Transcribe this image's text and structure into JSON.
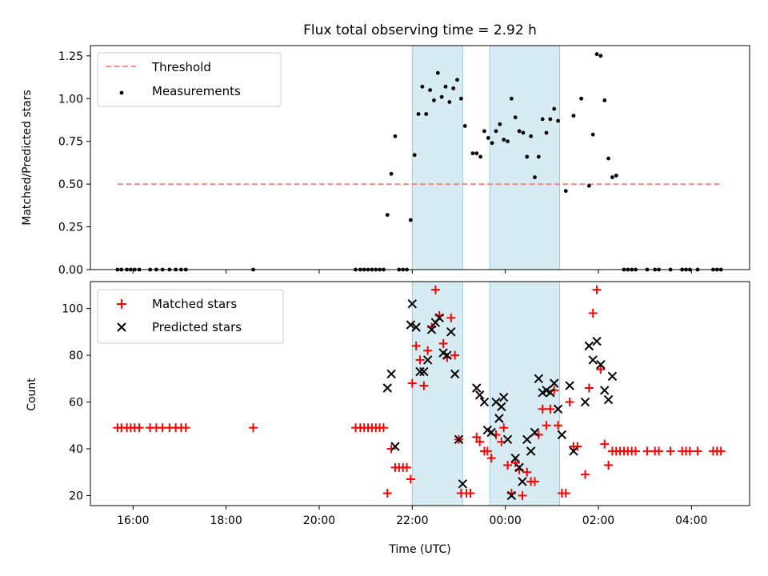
{
  "chart_data": [
    {
      "type": "scatter",
      "title": "Flux total observing time = 2.92 h",
      "xlabel": "",
      "ylabel": "Matched/Predicted stars",
      "ylim": [
        0,
        1.31
      ],
      "yticks": [
        "0.00",
        "0.25",
        "0.50",
        "0.75",
        "1.00",
        "1.25"
      ],
      "xlim": [
        "15:05",
        "05:15"
      ],
      "grid": false,
      "legend_placement": "top-left",
      "shaded_intervals": [
        [
          "22:00",
          "23:05"
        ],
        [
          "23:40",
          "01:10"
        ]
      ],
      "series": [
        {
          "name": "Threshold",
          "style": "dashed-line",
          "color": "#ff7f7f",
          "points": [
            [
              "15:40",
              0.5
            ],
            [
              "04:40",
              0.5
            ]
          ]
        },
        {
          "name": "Measurements",
          "style": "dots",
          "color": "#000000",
          "points": [
            [
              "15:40",
              0.0
            ],
            [
              "15:45",
              0.0
            ],
            [
              "15:52",
              0.0
            ],
            [
              "15:57",
              0.0
            ],
            [
              "16:02",
              0.0
            ],
            [
              "16:08",
              0.0
            ],
            [
              "16:22",
              0.0
            ],
            [
              "16:30",
              0.0
            ],
            [
              "16:38",
              0.0
            ],
            [
              "16:47",
              0.0
            ],
            [
              "16:55",
              0.0
            ],
            [
              "17:02",
              0.0
            ],
            [
              "17:08",
              0.0
            ],
            [
              "18:35",
              0.0
            ],
            [
              "20:47",
              0.0
            ],
            [
              "20:53",
              0.0
            ],
            [
              "20:58",
              0.0
            ],
            [
              "21:03",
              0.0
            ],
            [
              "21:08",
              0.0
            ],
            [
              "21:13",
              0.0
            ],
            [
              "21:18",
              0.0
            ],
            [
              "21:23",
              0.0
            ],
            [
              "21:28",
              0.32
            ],
            [
              "21:33",
              0.56
            ],
            [
              "21:38",
              0.78
            ],
            [
              "21:43",
              0.0
            ],
            [
              "21:48",
              0.0
            ],
            [
              "21:53",
              0.0
            ],
            [
              "21:58",
              0.29
            ],
            [
              "22:03",
              0.67
            ],
            [
              "22:08",
              0.91
            ],
            [
              "22:13",
              1.07
            ],
            [
              "22:18",
              0.91
            ],
            [
              "22:23",
              1.05
            ],
            [
              "22:28",
              0.99
            ],
            [
              "22:33",
              1.15
            ],
            [
              "22:38",
              1.01
            ],
            [
              "22:43",
              1.07
            ],
            [
              "22:48",
              0.98
            ],
            [
              "22:53",
              1.06
            ],
            [
              "22:58",
              1.11
            ],
            [
              "23:03",
              1.0
            ],
            [
              "23:08",
              0.84
            ],
            [
              "23:18",
              0.68
            ],
            [
              "23:23",
              0.68
            ],
            [
              "23:28",
              0.66
            ],
            [
              "23:33",
              0.81
            ],
            [
              "23:38",
              0.77
            ],
            [
              "23:43",
              0.74
            ],
            [
              "23:48",
              0.81
            ],
            [
              "23:53",
              0.85
            ],
            [
              "23:58",
              0.76
            ],
            [
              "00:03",
              0.75
            ],
            [
              "00:08",
              1.0
            ],
            [
              "00:13",
              0.89
            ],
            [
              "00:18",
              0.81
            ],
            [
              "00:23",
              0.8
            ],
            [
              "00:28",
              0.66
            ],
            [
              "00:33",
              0.78
            ],
            [
              "00:38",
              0.54
            ],
            [
              "00:43",
              0.66
            ],
            [
              "00:48",
              0.88
            ],
            [
              "00:53",
              0.8
            ],
            [
              "00:58",
              0.88
            ],
            [
              "01:03",
              0.94
            ],
            [
              "01:08",
              0.87
            ],
            [
              "01:18",
              0.46
            ],
            [
              "01:28",
              0.9
            ],
            [
              "01:38",
              1.0
            ],
            [
              "01:48",
              0.49
            ],
            [
              "01:53",
              0.79
            ],
            [
              "01:58",
              1.26
            ],
            [
              "02:03",
              1.25
            ],
            [
              "02:08",
              0.99
            ],
            [
              "02:13",
              0.65
            ],
            [
              "02:18",
              0.54
            ],
            [
              "02:23",
              0.55
            ],
            [
              "02:33",
              0.0
            ],
            [
              "02:38",
              0.0
            ],
            [
              "02:43",
              0.0
            ],
            [
              "02:48",
              0.0
            ],
            [
              "03:03",
              0.0
            ],
            [
              "03:13",
              0.0
            ],
            [
              "03:18",
              0.0
            ],
            [
              "03:33",
              0.0
            ],
            [
              "03:48",
              0.0
            ],
            [
              "03:53",
              0.0
            ],
            [
              "03:58",
              0.0
            ],
            [
              "04:08",
              0.0
            ],
            [
              "04:28",
              0.0
            ],
            [
              "04:33",
              0.0
            ],
            [
              "04:38",
              0.0
            ]
          ]
        }
      ]
    },
    {
      "type": "scatter",
      "title": "",
      "xlabel": "Time (UTC)",
      "ylabel": "Count",
      "ylim": [
        15.7,
        111.5
      ],
      "yticks": [
        "20",
        "40",
        "60",
        "80",
        "100"
      ],
      "xticks": [
        "16:00",
        "18:00",
        "20:00",
        "22:00",
        "00:00",
        "02:00",
        "04:00"
      ],
      "xlim": [
        "15:05",
        "05:15"
      ],
      "grid": false,
      "legend_placement": "top-left",
      "shaded_intervals": [
        [
          "22:00",
          "23:05"
        ],
        [
          "23:40",
          "01:10"
        ]
      ],
      "series": [
        {
          "name": "Matched stars",
          "marker": "plus",
          "color": "#ff0000",
          "points": [
            [
              "15:40",
              49
            ],
            [
              "15:45",
              49
            ],
            [
              "15:52",
              49
            ],
            [
              "15:57",
              49
            ],
            [
              "16:02",
              49
            ],
            [
              "16:08",
              49
            ],
            [
              "16:22",
              49
            ],
            [
              "16:30",
              49
            ],
            [
              "16:38",
              49
            ],
            [
              "16:47",
              49
            ],
            [
              "16:55",
              49
            ],
            [
              "17:02",
              49
            ],
            [
              "17:08",
              49
            ],
            [
              "18:35",
              49
            ],
            [
              "20:47",
              49
            ],
            [
              "20:53",
              49
            ],
            [
              "20:58",
              49
            ],
            [
              "21:03",
              49
            ],
            [
              "21:08",
              49
            ],
            [
              "21:13",
              49
            ],
            [
              "21:18",
              49
            ],
            [
              "21:23",
              49
            ],
            [
              "21:28",
              21
            ],
            [
              "21:33",
              40
            ],
            [
              "21:38",
              32
            ],
            [
              "21:43",
              32
            ],
            [
              "21:48",
              32
            ],
            [
              "21:53",
              32
            ],
            [
              "21:58",
              27
            ],
            [
              "22:00",
              68
            ],
            [
              "22:05",
              84
            ],
            [
              "22:10",
              78
            ],
            [
              "22:15",
              67
            ],
            [
              "22:20",
              82
            ],
            [
              "22:25",
              92
            ],
            [
              "22:30",
              108
            ],
            [
              "22:35",
              97
            ],
            [
              "22:40",
              85
            ],
            [
              "22:45",
              79
            ],
            [
              "22:50",
              96
            ],
            [
              "22:55",
              80
            ],
            [
              "23:00",
              44
            ],
            [
              "23:03",
              21
            ],
            [
              "23:10",
              21
            ],
            [
              "23:15",
              21
            ],
            [
              "23:23",
              45
            ],
            [
              "23:27",
              43
            ],
            [
              "23:33",
              39
            ],
            [
              "23:37",
              39
            ],
            [
              "23:42",
              36
            ],
            [
              "23:48",
              46
            ],
            [
              "23:55",
              43
            ],
            [
              "23:58",
              49
            ],
            [
              "00:03",
              33
            ],
            [
              "00:08",
              21
            ],
            [
              "00:13",
              34
            ],
            [
              "00:18",
              31
            ],
            [
              "00:22",
              20
            ],
            [
              "00:28",
              30
            ],
            [
              "00:33",
              26
            ],
            [
              "00:38",
              26
            ],
            [
              "00:43",
              46
            ],
            [
              "00:48",
              57
            ],
            [
              "00:53",
              50
            ],
            [
              "00:58",
              57
            ],
            [
              "01:03",
              65
            ],
            [
              "01:08",
              50
            ],
            [
              "01:13",
              21
            ],
            [
              "01:18",
              21
            ],
            [
              "01:23",
              60
            ],
            [
              "01:28",
              41
            ],
            [
              "01:33",
              41
            ],
            [
              "01:43",
              29
            ],
            [
              "01:48",
              66
            ],
            [
              "01:53",
              98
            ],
            [
              "01:58",
              108
            ],
            [
              "02:03",
              74
            ],
            [
              "02:08",
              42
            ],
            [
              "02:13",
              33
            ],
            [
              "02:18",
              39
            ],
            [
              "02:23",
              39
            ],
            [
              "02:28",
              39
            ],
            [
              "02:33",
              39
            ],
            [
              "02:38",
              39
            ],
            [
              "02:43",
              39
            ],
            [
              "02:48",
              39
            ],
            [
              "03:03",
              39
            ],
            [
              "03:13",
              39
            ],
            [
              "03:18",
              39
            ],
            [
              "03:33",
              39
            ],
            [
              "03:48",
              39
            ],
            [
              "03:53",
              39
            ],
            [
              "03:58",
              39
            ],
            [
              "04:08",
              39
            ],
            [
              "04:28",
              39
            ],
            [
              "04:33",
              39
            ],
            [
              "04:38",
              39
            ]
          ]
        },
        {
          "name": "Predicted stars",
          "marker": "x",
          "color": "#000000",
          "points": [
            [
              "21:28",
              66
            ],
            [
              "21:33",
              72
            ],
            [
              "21:38",
              41
            ],
            [
              "21:58",
              93
            ],
            [
              "22:00",
              102
            ],
            [
              "22:05",
              92
            ],
            [
              "22:10",
              73
            ],
            [
              "22:15",
              73
            ],
            [
              "22:20",
              78
            ],
            [
              "22:25",
              91
            ],
            [
              "22:30",
              94
            ],
            [
              "22:35",
              96
            ],
            [
              "22:40",
              81
            ],
            [
              "22:45",
              80
            ],
            [
              "22:50",
              90
            ],
            [
              "22:55",
              72
            ],
            [
              "23:00",
              44
            ],
            [
              "23:05",
              25
            ],
            [
              "23:23",
              66
            ],
            [
              "23:27",
              63
            ],
            [
              "23:33",
              60
            ],
            [
              "23:37",
              48
            ],
            [
              "23:42",
              47
            ],
            [
              "23:48",
              60
            ],
            [
              "23:52",
              53
            ],
            [
              "23:55",
              58
            ],
            [
              "23:58",
              62
            ],
            [
              "00:03",
              44
            ],
            [
              "00:08",
              20
            ],
            [
              "00:13",
              36
            ],
            [
              "00:18",
              32
            ],
            [
              "00:22",
              26
            ],
            [
              "00:28",
              44
            ],
            [
              "00:33",
              39
            ],
            [
              "00:38",
              47
            ],
            [
              "00:43",
              70
            ],
            [
              "00:48",
              64
            ],
            [
              "00:53",
              65
            ],
            [
              "00:58",
              64
            ],
            [
              "01:03",
              68
            ],
            [
              "01:08",
              57
            ],
            [
              "01:13",
              46
            ],
            [
              "01:23",
              67
            ],
            [
              "01:28",
              39
            ],
            [
              "01:43",
              60
            ],
            [
              "01:48",
              84
            ],
            [
              "01:53",
              78
            ],
            [
              "01:58",
              86
            ],
            [
              "02:03",
              76
            ],
            [
              "02:08",
              65
            ],
            [
              "02:13",
              61
            ],
            [
              "02:18",
              71
            ]
          ]
        }
      ]
    }
  ]
}
